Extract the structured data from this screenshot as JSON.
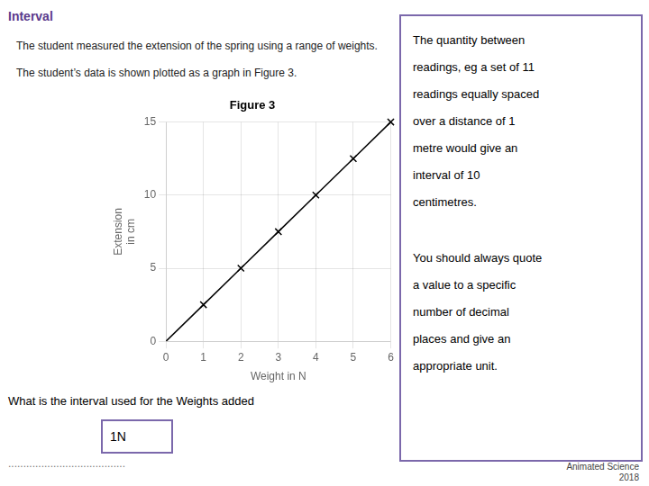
{
  "chart_data": {
    "type": "line",
    "title": "Figure 3",
    "x_label": "Weight in N",
    "y_label": "Extension\nin cm",
    "x": [
      0,
      1,
      2,
      3,
      4,
      5,
      6
    ],
    "series": [
      {
        "values": [
          0,
          2.5,
          5,
          7.5,
          10,
          12.5,
          15
        ],
        "color": "#000000",
        "marker": "none",
        "line_style": "solid"
      },
      {
        "type": "scatter",
        "values": [
          null,
          2.5,
          5,
          7.5,
          10,
          12.5,
          15
        ],
        "color": "#000000",
        "marker": "x"
      }
    ],
    "xlim": [
      0,
      6
    ],
    "ylim": [
      0,
      15
    ],
    "xticks": [
      0,
      1,
      2,
      3,
      4,
      5,
      6
    ],
    "yticks": [
      0,
      5,
      10,
      15
    ],
    "grid": true,
    "annotations": [
      [
        "Interval"
      ],
      [
        "The student measured the extension of the spring using a range of weights."
      ],
      [
        "The student’s data is shown plotted as a graph in Figure 3."
      ],
      [
        "The quantity between",
        "readings, eg a set of 11",
        "readings equally spaced",
        "over a distance of 1",
        "metre would give an",
        "interval of 10",
        "centimetres."
      ],
      [
        "You should always quote",
        "a value to a specific",
        "number of decimal",
        "places and give an",
        "appropriate unit."
      ],
      [
        "What is the interval used for the Weights added"
      ],
      [
        "1N"
      ],
      [
        "......................................."
      ],
      [
        "Animated Science",
        "2018"
      ]
    ]
  }
}
